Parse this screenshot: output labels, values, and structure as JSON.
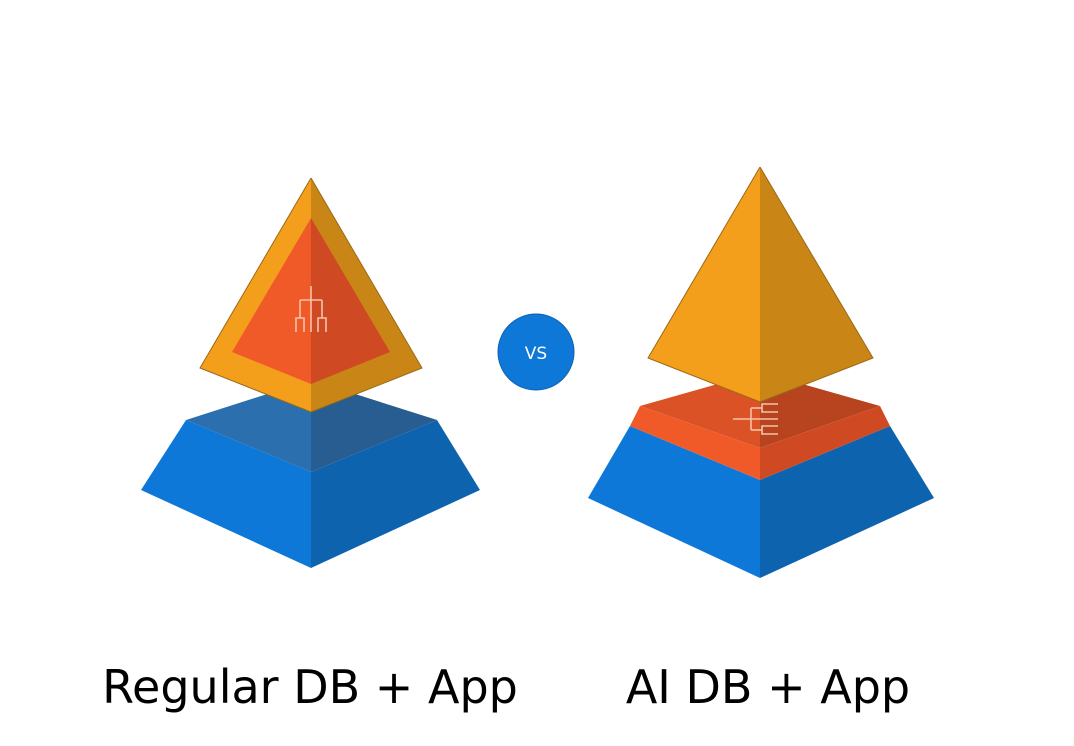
{
  "left": {
    "caption": "Regular DB + App",
    "icon": "hierarchy-tree-icon"
  },
  "right": {
    "caption": "AI DB + App",
    "icon": "horizontal-tree-icon"
  },
  "separator": {
    "label": "VS",
    "color": "#0e78d8"
  },
  "colors": {
    "orange_light": "#f39f1b",
    "orange_dark": "#c98516",
    "red_light": "#f05a28",
    "red_dark": "#cf4a23",
    "blue_light": "#0e78d8",
    "blue_dark": "#0d63ad",
    "blue_top_light": "#2b6faf",
    "blue_top_dark": "#285d92"
  }
}
